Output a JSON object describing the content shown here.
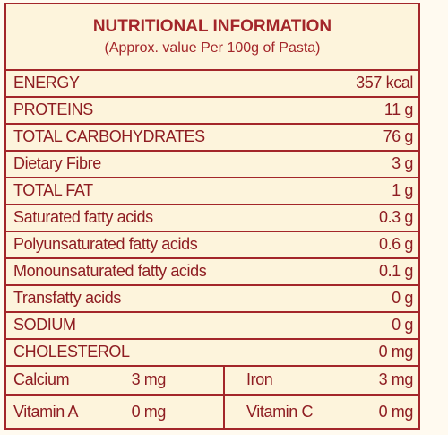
{
  "header": {
    "title": "NUTRITIONAL INFORMATION",
    "subtitle": "(Approx. value Per 100g of Pasta)"
  },
  "table": {
    "rows": [
      [
        "ENERGY",
        "357 kcal"
      ],
      [
        "PROTEINS",
        "11 g"
      ],
      [
        "TOTAL CARBOHYDRATES",
        "76 g"
      ],
      [
        "Dietary Fibre",
        "3 g"
      ],
      [
        "TOTAL FAT",
        "1 g"
      ],
      [
        "Saturated fatty acids",
        "0.3 g"
      ],
      [
        "Polyunsaturated fatty acids",
        "0.6 g"
      ],
      [
        "Monounsaturated fatty acids",
        "0.1 g"
      ],
      [
        "Transfatty acids",
        "0 g"
      ],
      [
        "SODIUM",
        "0 g"
      ],
      [
        "CHOLESTEROL",
        "0 mg"
      ]
    ],
    "split_rows": [
      [
        "Calcium",
        "3 mg",
        "Iron",
        "3 mg"
      ],
      [
        "Vitamin A",
        "0 mg",
        "Vitamin C",
        "0 mg"
      ]
    ]
  }
}
